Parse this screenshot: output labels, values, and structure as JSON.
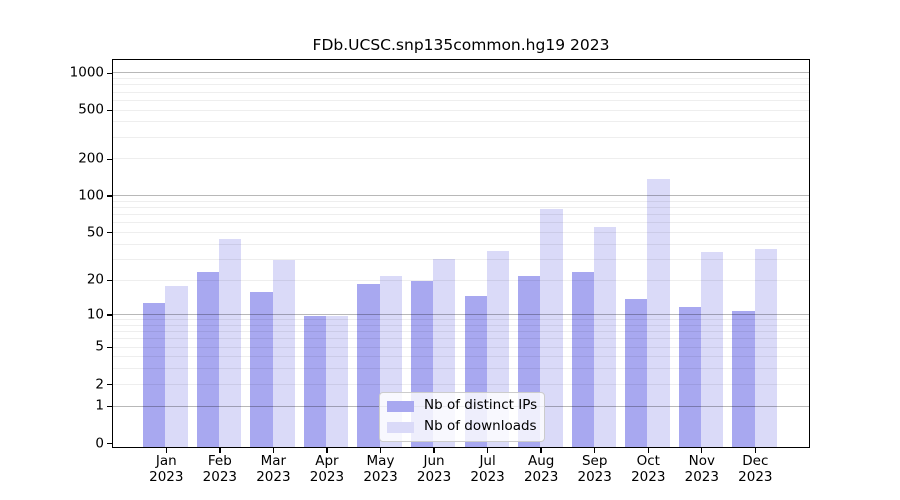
{
  "title": "FDb.UCSC.snp135common.hg19 2023",
  "chart_data": {
    "type": "bar",
    "title": "FDb.UCSC.snp135common.hg19 2023",
    "categories": [
      "Jan",
      "Feb",
      "Mar",
      "Apr",
      "May",
      "Jun",
      "Jul",
      "Aug",
      "Sep",
      "Oct",
      "Nov",
      "Dec"
    ],
    "category_year": "2023",
    "series": [
      {
        "name": "Nb of distinct IPs",
        "color": "#a8a8f0",
        "values": [
          13,
          24,
          16,
          10,
          19,
          20,
          15,
          22,
          24,
          14,
          12,
          11
        ]
      },
      {
        "name": "Nb of downloads",
        "color": "#dadaf8",
        "values": [
          18,
          45,
          30,
          10,
          22,
          31,
          36,
          80,
          57,
          140,
          35,
          37
        ]
      }
    ],
    "y_ticks": [
      0,
      1,
      2,
      5,
      10,
      20,
      50,
      100,
      200,
      500,
      1000
    ],
    "y_scale": "log10(1+x)",
    "ylim": [
      0,
      1300
    ],
    "xlabel": "",
    "ylabel": "",
    "grid": true,
    "legend_position": "lower center"
  }
}
